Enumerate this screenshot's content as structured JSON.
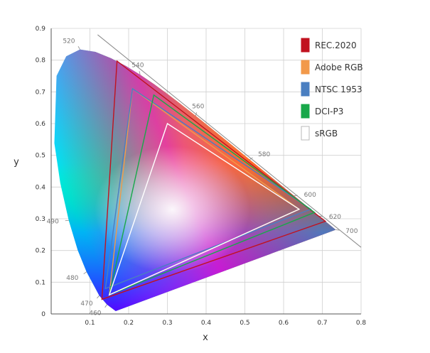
{
  "chart_data": {
    "type": "scatter",
    "subtype": "cie-1931-chromaticity-diagram",
    "title": "",
    "xlabel": "x",
    "ylabel": "y",
    "xlim": [
      0,
      0.8
    ],
    "ylim": [
      0,
      0.9
    ],
    "grid": true,
    "legend_position": "top-right",
    "x_ticks": [
      {
        "value": 0.1,
        "label": "0.1"
      },
      {
        "value": 0.2,
        "label": "0.2"
      },
      {
        "value": 0.3,
        "label": "0.3"
      },
      {
        "value": 0.4,
        "label": "0.4"
      },
      {
        "value": 0.5,
        "label": "0.5"
      },
      {
        "value": 0.6,
        "label": "0.6"
      },
      {
        "value": 0.7,
        "label": "0.7"
      },
      {
        "value": 0.8,
        "label": "0.8"
      }
    ],
    "y_ticks": [
      {
        "value": 0,
        "label": "0"
      },
      {
        "value": 0.1,
        "label": "0.1"
      },
      {
        "value": 0.2,
        "label": "0.2"
      },
      {
        "value": 0.3,
        "label": "0.3"
      },
      {
        "value": 0.4,
        "label": "0.4"
      },
      {
        "value": 0.5,
        "label": "0.5"
      },
      {
        "value": 0.6,
        "label": "0.6"
      },
      {
        "value": 0.7,
        "label": "0.7"
      },
      {
        "value": 0.8,
        "label": "0.8"
      },
      {
        "value": 0.9,
        "label": "0.9"
      }
    ],
    "spectral_locus": [
      [
        0.1666,
        0.0089
      ],
      [
        0.144,
        0.0297
      ],
      [
        0.1241,
        0.0578
      ],
      [
        0.0913,
        0.1327
      ],
      [
        0.0687,
        0.2007
      ],
      [
        0.0454,
        0.295
      ],
      [
        0.0235,
        0.4127
      ],
      [
        0.0082,
        0.5384
      ],
      [
        0.0139,
        0.7502
      ],
      [
        0.0389,
        0.812
      ],
      [
        0.0743,
        0.8338
      ],
      [
        0.1142,
        0.8262
      ],
      [
        0.1547,
        0.8059
      ],
      [
        0.1929,
        0.7816
      ],
      [
        0.2296,
        0.7543
      ],
      [
        0.2658,
        0.7243
      ],
      [
        0.3016,
        0.6923
      ],
      [
        0.3373,
        0.6589
      ],
      [
        0.3731,
        0.6245
      ],
      [
        0.4087,
        0.5896
      ],
      [
        0.4441,
        0.5547
      ],
      [
        0.4788,
        0.5202
      ],
      [
        0.5125,
        0.4866
      ],
      [
        0.5448,
        0.4544
      ],
      [
        0.5752,
        0.4242
      ],
      [
        0.6029,
        0.3965
      ],
      [
        0.627,
        0.3725
      ],
      [
        0.6482,
        0.3514
      ],
      [
        0.6658,
        0.334
      ],
      [
        0.6801,
        0.3197
      ],
      [
        0.6915,
        0.3083
      ],
      [
        0.7006,
        0.2993
      ],
      [
        0.7079,
        0.292
      ],
      [
        0.714,
        0.2859
      ],
      [
        0.719,
        0.2809
      ],
      [
        0.723,
        0.277
      ],
      [
        0.726,
        0.274
      ],
      [
        0.7347,
        0.2653
      ]
    ],
    "wavelength_labels": [
      {
        "label": "460",
        "x": 0.144,
        "y": 0.0297
      },
      {
        "label": "470",
        "x": 0.1241,
        "y": 0.0578
      },
      {
        "label": "480",
        "x": 0.0913,
        "y": 0.1327
      },
      {
        "label": "490",
        "x": 0.0454,
        "y": 0.295
      },
      {
        "label": "520",
        "x": 0.0743,
        "y": 0.8338
      },
      {
        "label": "540",
        "x": 0.2296,
        "y": 0.7543
      },
      {
        "label": "560",
        "x": 0.3731,
        "y": 0.6245
      },
      {
        "label": "580",
        "x": 0.5125,
        "y": 0.4866
      },
      {
        "label": "600",
        "x": 0.627,
        "y": 0.3725
      },
      {
        "label": "620",
        "x": 0.6915,
        "y": 0.3083
      },
      {
        "label": "700",
        "x": 0.7347,
        "y": 0.2653
      }
    ],
    "series": [
      {
        "name": "REC.2020",
        "color": "#c1121f",
        "points": [
          [
            0.708,
            0.292
          ],
          [
            0.17,
            0.797
          ],
          [
            0.131,
            0.046
          ]
        ]
      },
      {
        "name": "Adobe RGB",
        "color": "#f2994a",
        "points": [
          [
            0.64,
            0.33
          ],
          [
            0.21,
            0.71
          ],
          [
            0.15,
            0.06
          ]
        ]
      },
      {
        "name": "NTSC 1953",
        "color": "#4a7fc1",
        "points": [
          [
            0.67,
            0.33
          ],
          [
            0.21,
            0.71
          ],
          [
            0.14,
            0.08
          ]
        ]
      },
      {
        "name": "DCI-P3",
        "color": "#18a84a",
        "points": [
          [
            0.68,
            0.32
          ],
          [
            0.265,
            0.69
          ],
          [
            0.15,
            0.06
          ]
        ]
      },
      {
        "name": "sRGB",
        "color": "#ffffff",
        "points": [
          [
            0.64,
            0.33
          ],
          [
            0.3,
            0.6
          ],
          [
            0.15,
            0.06
          ]
        ]
      }
    ]
  }
}
